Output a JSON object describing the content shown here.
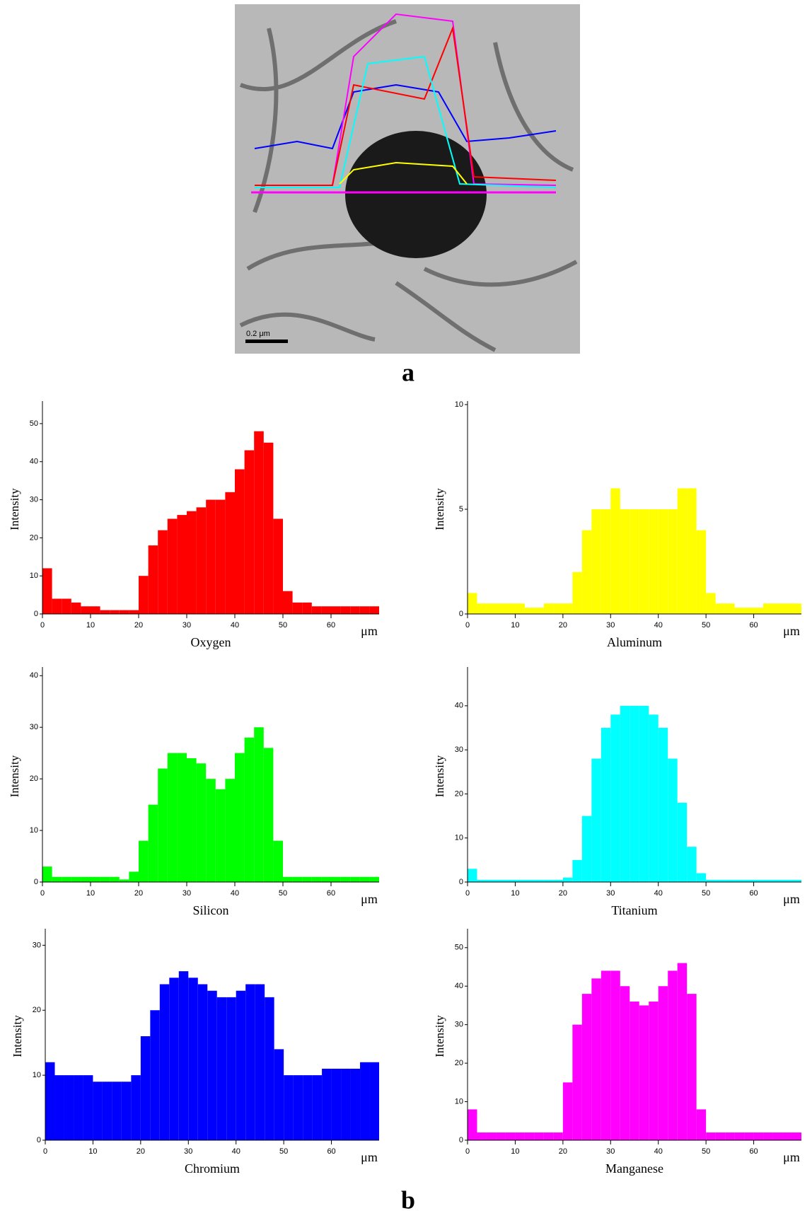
{
  "panel_a": {
    "label": "a",
    "scale_bar": "0.2 μm"
  },
  "panel_b_label": "b",
  "chart_data": [
    {
      "type": "histogram",
      "title": "Oxygen",
      "y_label": "Intensity",
      "x_unit": "μm",
      "color": "#ff0000",
      "bins": [
        0,
        2,
        4,
        6,
        8,
        10,
        12,
        14,
        16,
        18,
        20,
        22,
        24,
        26,
        28,
        30,
        32,
        34,
        36,
        38,
        40,
        42,
        44,
        46,
        48,
        50,
        52,
        54,
        56,
        58,
        60,
        62,
        64,
        66,
        68,
        70
      ],
      "values": [
        12,
        4,
        4,
        3,
        2,
        2,
        1,
        1,
        1,
        1,
        10,
        18,
        22,
        25,
        26,
        27,
        28,
        30,
        30,
        32,
        38,
        43,
        48,
        45,
        25,
        6,
        3,
        3,
        2,
        2,
        2,
        2,
        2,
        2,
        2
      ],
      "xlim": [
        0,
        70
      ],
      "xticks": [
        0,
        10,
        20,
        30,
        40,
        50,
        60
      ],
      "ylim": [
        0,
        55
      ],
      "yticks": [
        0,
        10,
        20,
        30,
        40,
        50
      ]
    },
    {
      "type": "histogram",
      "title": "Aluminum",
      "y_label": "Intensity",
      "x_unit": "μm",
      "color": "#ffff00",
      "bins": [
        0,
        2,
        4,
        6,
        8,
        10,
        12,
        14,
        16,
        18,
        20,
        22,
        24,
        26,
        28,
        30,
        32,
        34,
        36,
        38,
        40,
        42,
        44,
        46,
        48,
        50,
        52,
        54,
        56,
        58,
        60,
        62,
        64,
        66,
        68,
        70
      ],
      "values": [
        1,
        0.5,
        0.5,
        0.5,
        0.5,
        0.5,
        0.3,
        0.3,
        0.5,
        0.5,
        0.5,
        2,
        4,
        5,
        5,
        6,
        5,
        5,
        5,
        5,
        5,
        5,
        6,
        6,
        4,
        1,
        0.5,
        0.5,
        0.3,
        0.3,
        0.3,
        0.5,
        0.5,
        0.5,
        0.5
      ],
      "xlim": [
        0,
        70
      ],
      "xticks": [
        0,
        10,
        20,
        30,
        40,
        50,
        60
      ],
      "ylim": [
        0,
        10
      ],
      "yticks": [
        0,
        5,
        10
      ]
    },
    {
      "type": "histogram",
      "title": "Silicon",
      "y_label": "Intensity",
      "x_unit": "μm",
      "color": "#00ff00",
      "bins": [
        0,
        2,
        4,
        6,
        8,
        10,
        12,
        14,
        16,
        18,
        20,
        22,
        24,
        26,
        28,
        30,
        32,
        34,
        36,
        38,
        40,
        42,
        44,
        46,
        48,
        50,
        52,
        54,
        56,
        58,
        60,
        62,
        64,
        66,
        68,
        70
      ],
      "values": [
        3,
        1,
        1,
        1,
        1,
        1,
        1,
        1,
        0.5,
        2,
        8,
        15,
        22,
        25,
        25,
        24,
        23,
        20,
        18,
        20,
        25,
        28,
        30,
        26,
        8,
        1,
        1,
        1,
        1,
        1,
        1,
        1,
        1,
        1,
        1
      ],
      "xlim": [
        0,
        70
      ],
      "xticks": [
        0,
        10,
        20,
        30,
        40,
        50,
        60
      ],
      "ylim": [
        0,
        41
      ],
      "yticks": [
        0,
        10,
        20,
        30,
        40
      ]
    },
    {
      "type": "histogram",
      "title": "Titanium",
      "y_label": "Intensity",
      "x_unit": "μm",
      "color": "#00ffff",
      "bins": [
        0,
        2,
        4,
        6,
        8,
        10,
        12,
        14,
        16,
        18,
        20,
        22,
        24,
        26,
        28,
        30,
        32,
        34,
        36,
        38,
        40,
        42,
        44,
        46,
        48,
        50,
        52,
        54,
        56,
        58,
        60,
        62,
        64,
        66,
        68,
        70
      ],
      "values": [
        3,
        0.5,
        0.5,
        0.5,
        0.5,
        0.5,
        0.5,
        0.5,
        0.5,
        0.5,
        1,
        5,
        15,
        28,
        35,
        38,
        40,
        40,
        40,
        38,
        35,
        28,
        18,
        8,
        2,
        0.5,
        0.5,
        0.5,
        0.5,
        0.5,
        0.5,
        0.5,
        0.5,
        0.5,
        0.5
      ],
      "xlim": [
        0,
        70
      ],
      "xticks": [
        0,
        10,
        20,
        30,
        40,
        50,
        60
      ],
      "ylim": [
        0,
        48
      ],
      "yticks": [
        0,
        10,
        20,
        30,
        40
      ]
    },
    {
      "type": "histogram",
      "title": "Chromium",
      "y_label": "Intensity",
      "x_unit": "μm",
      "color": "#0000ff",
      "bins": [
        0,
        2,
        4,
        6,
        8,
        10,
        12,
        14,
        16,
        18,
        20,
        22,
        24,
        26,
        28,
        30,
        32,
        34,
        36,
        38,
        40,
        42,
        44,
        46,
        48,
        50,
        52,
        54,
        56,
        58,
        60,
        62,
        64,
        66,
        68,
        70
      ],
      "values": [
        12,
        10,
        10,
        10,
        10,
        9,
        9,
        9,
        9,
        10,
        16,
        20,
        24,
        25,
        26,
        25,
        24,
        23,
        22,
        22,
        23,
        24,
        24,
        22,
        14,
        10,
        10,
        10,
        10,
        11,
        11,
        11,
        11,
        12,
        12
      ],
      "xlim": [
        0,
        70
      ],
      "xticks": [
        0,
        10,
        20,
        30,
        40,
        50,
        60
      ],
      "ylim": [
        0,
        32
      ],
      "yticks": [
        0,
        10,
        20,
        30
      ]
    },
    {
      "type": "histogram",
      "title": "Manganese",
      "y_label": "Intensity",
      "x_unit": "μm",
      "color": "#ff00ff",
      "bins": [
        0,
        2,
        4,
        6,
        8,
        10,
        12,
        14,
        16,
        18,
        20,
        22,
        24,
        26,
        28,
        30,
        32,
        34,
        36,
        38,
        40,
        42,
        44,
        46,
        48,
        50,
        52,
        54,
        56,
        58,
        60,
        62,
        64,
        66,
        68,
        70
      ],
      "values": [
        8,
        2,
        2,
        2,
        2,
        2,
        2,
        2,
        2,
        2,
        15,
        30,
        38,
        42,
        44,
        44,
        40,
        36,
        35,
        36,
        40,
        44,
        46,
        38,
        8,
        2,
        2,
        2,
        2,
        2,
        2,
        2,
        2,
        2,
        2
      ],
      "xlim": [
        0,
        70
      ],
      "xticks": [
        0,
        10,
        20,
        30,
        40,
        50,
        60
      ],
      "ylim": [
        0,
        54
      ],
      "yticks": [
        0,
        10,
        20,
        30,
        40,
        50
      ]
    }
  ]
}
